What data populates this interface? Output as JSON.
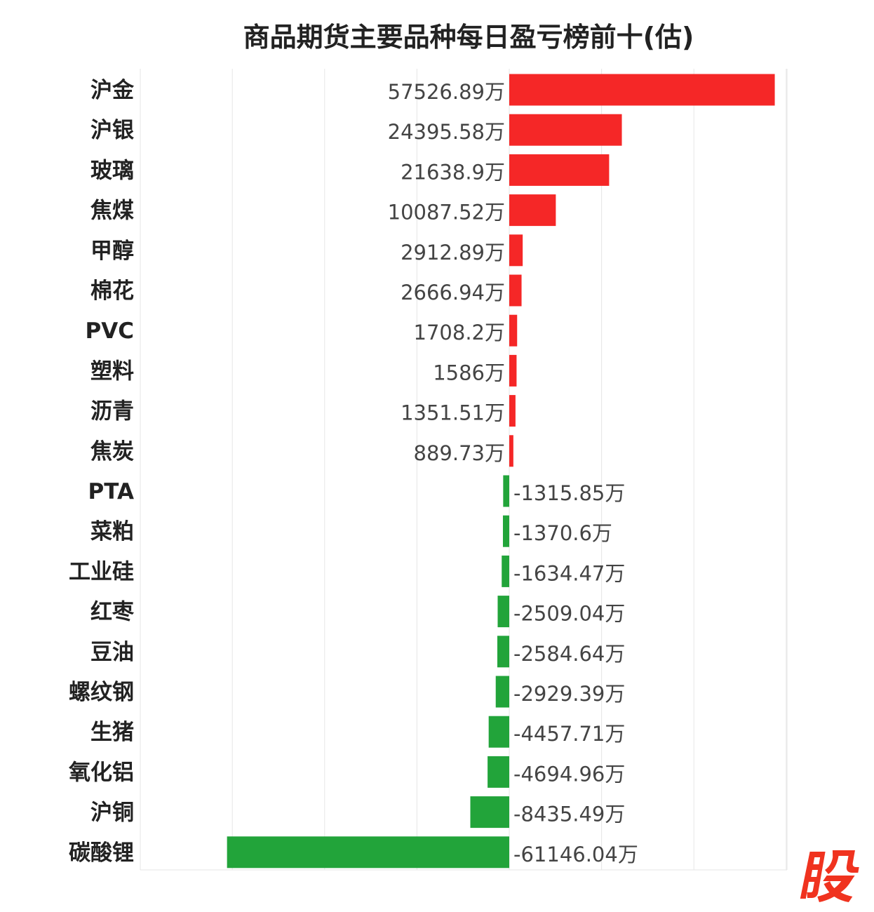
{
  "title": "商品期货主要品种每日盈亏榜前十(估)",
  "watermark_text": "股",
  "colors": {
    "positive": "#f52727",
    "negative": "#22a43a",
    "grid": "#e6e6e6",
    "brand": "#f0331f"
  },
  "chart_data": {
    "type": "bar",
    "orientation": "horizontal",
    "title": "商品期货主要品种每日盈亏榜前十(估)",
    "unit": "万",
    "xlim": [
      -80000,
      80000
    ],
    "grid": true,
    "categories": [
      "沪金",
      "沪银",
      "玻璃",
      "焦煤",
      "甲醇",
      "棉花",
      "PVC",
      "塑料",
      "沥青",
      "焦炭",
      "PTA",
      "菜粕",
      "工业硅",
      "红枣",
      "豆油",
      "螺纹钢",
      "生猪",
      "氧化铝",
      "沪铜",
      "碳酸锂"
    ],
    "values": [
      57526.89,
      24395.58,
      21638.9,
      10087.52,
      2912.89,
      2666.94,
      1708.2,
      1586,
      1351.51,
      889.73,
      -1315.85,
      -1370.6,
      -1634.47,
      -2509.04,
      -2584.64,
      -2929.39,
      -4457.71,
      -4694.96,
      -8435.49,
      -61146.04
    ],
    "value_labels": [
      "57526.89万",
      "24395.58万",
      "21638.9万",
      "10087.52万",
      "2912.89万",
      "2666.94万",
      "1708.2万",
      "1586万",
      "1351.51万",
      "889.73万",
      "-1315.85万",
      "-1370.6万",
      "-1634.47万",
      "-2509.04万",
      "-2584.64万",
      "-2929.39万",
      "-4457.71万",
      "-4694.96万",
      "-8435.49万",
      "-61146.04万"
    ]
  }
}
